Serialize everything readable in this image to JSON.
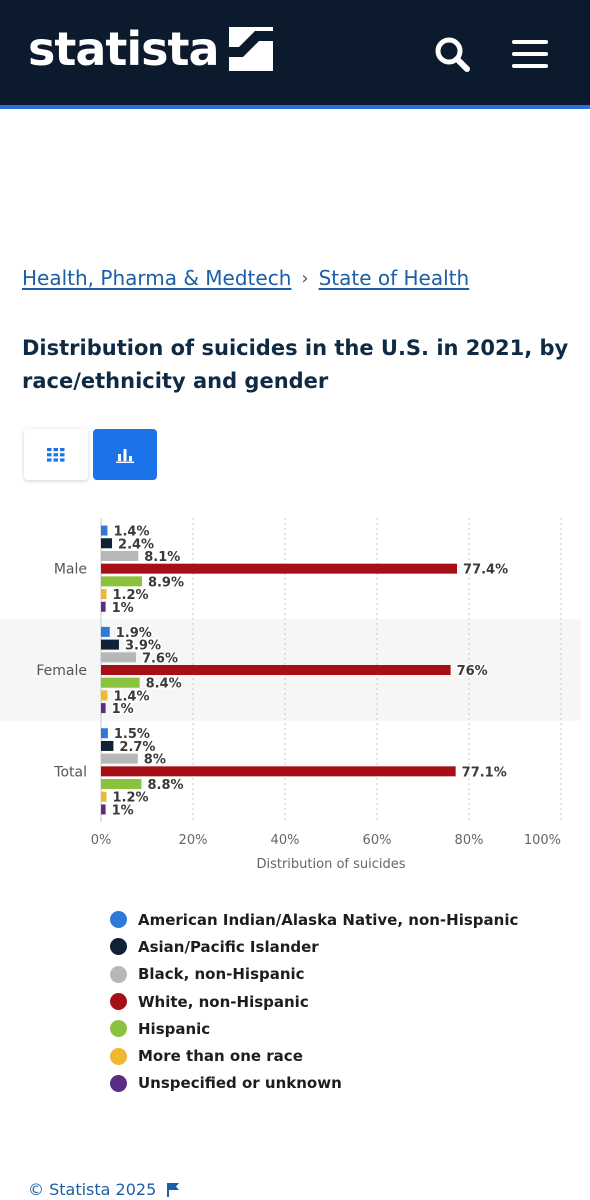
{
  "header": {
    "logo_text": "statista",
    "search_icon": "search-icon",
    "menu_icon": "hamburger-menu-icon",
    "background": "#0b1a2c",
    "accent": "#2a6fdb"
  },
  "breadcrumb": {
    "items": [
      "Health, Pharma & Medtech",
      "State of Health"
    ],
    "separator": "›"
  },
  "page": {
    "title": "Distribution of suicides in the U.S. in 2021, by race/ethnicity and gender"
  },
  "view_toggle": {
    "table_icon": "grid-table-icon",
    "chart_icon": "bar-chart-icon",
    "active": "chart"
  },
  "chart_data": {
    "type": "bar",
    "orientation": "horizontal",
    "categories": [
      "Male",
      "Female",
      "Total"
    ],
    "series": [
      {
        "name": "American Indian/Alaska Native, non-Hispanic",
        "color": "#2d7ad6",
        "values": [
          1.4,
          1.9,
          1.5
        ],
        "labels": [
          "1.4%",
          "1.9%",
          "1.5%"
        ]
      },
      {
        "name": "Asian/Pacific Islander",
        "color": "#0f2236",
        "values": [
          2.4,
          3.9,
          2.7
        ],
        "labels": [
          "2.4%",
          "3.9%",
          "2.7%"
        ]
      },
      {
        "name": "Black, non-Hispanic",
        "color": "#b7b7b7",
        "values": [
          8.1,
          7.6,
          8
        ],
        "labels": [
          "8.1%",
          "7.6%",
          "8%"
        ]
      },
      {
        "name": "White, non-Hispanic",
        "color": "#a50f15",
        "values": [
          77.4,
          76,
          77.1
        ],
        "labels": [
          "77.4%",
          "76%",
          "77.1%"
        ]
      },
      {
        "name": "Hispanic",
        "color": "#8ac13d",
        "values": [
          8.9,
          8.4,
          8.8
        ],
        "labels": [
          "8.9%",
          "8.4%",
          "8.8%"
        ]
      },
      {
        "name": "More than one race",
        "color": "#f0b82e",
        "values": [
          1.2,
          1.4,
          1.2
        ],
        "labels": [
          "1.2%",
          "1.4%",
          "1.2%"
        ]
      },
      {
        "name": "Unspecified or unknown",
        "color": "#5b2c83",
        "values": [
          1,
          1,
          1
        ],
        "labels": [
          "1%",
          "1%",
          "1%"
        ]
      }
    ],
    "xlabel": "Distribution of suicides",
    "xlim": [
      0,
      100
    ],
    "xticks": [
      "0%",
      "20%",
      "40%",
      "60%",
      "80%",
      "100%"
    ],
    "grid": true,
    "legend_position": "bottom"
  },
  "footer": {
    "copyright": "© Statista 2025",
    "flag_icon": "flag-icon"
  }
}
